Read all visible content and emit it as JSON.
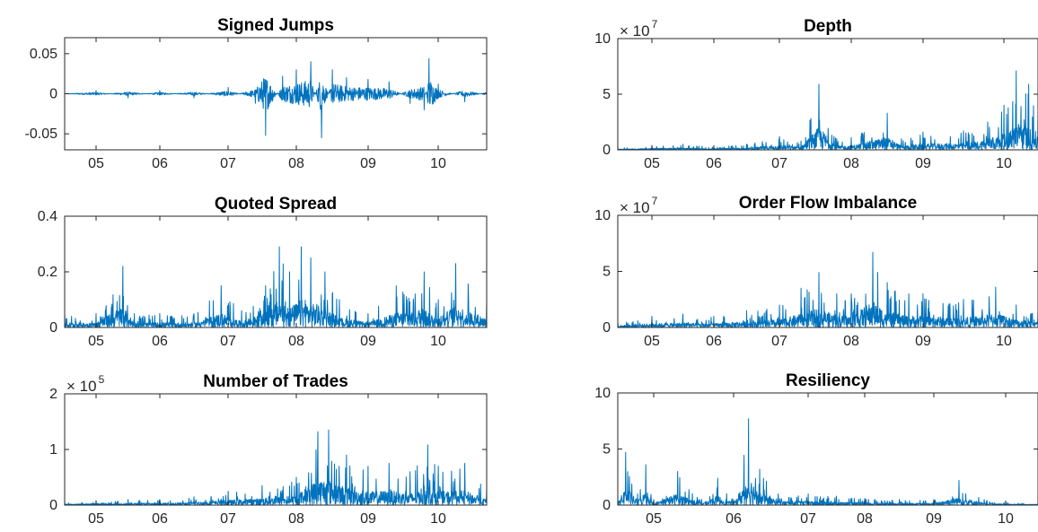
{
  "figure": {
    "series_color": "#0072BD",
    "axis_color": "#262626",
    "background": "#ffffff"
  },
  "chart_data": [
    {
      "type": "line",
      "title": "Signed Jumps",
      "x_tick_labels": [
        "05",
        "06",
        "07",
        "08",
        "09",
        "10"
      ],
      "x_range": [
        2004.55,
        2010.55
      ],
      "ylim": [
        -0.07,
        0.07
      ],
      "y_ticks": [
        -0.05,
        0,
        0.05
      ],
      "y_tick_labels": [
        "-0.05",
        "0",
        "0.05"
      ],
      "exponent_label": "",
      "grid": false,
      "series": [
        {
          "x": [
            2004.55,
            2005.0,
            2005.5,
            2006.0,
            2006.5,
            2007.0,
            2007.4,
            2007.55,
            2007.8,
            2008.0,
            2008.2,
            2008.35,
            2008.5,
            2008.7,
            2009.0,
            2009.3,
            2009.6,
            2009.8,
            2009.87,
            2010.0,
            2010.3,
            2010.55
          ],
          "y": [
            0.0,
            0.004,
            -0.005,
            0.004,
            -0.005,
            0.008,
            -0.012,
            -0.052,
            0.022,
            0.03,
            0.04,
            -0.055,
            0.03,
            0.02,
            0.018,
            0.015,
            -0.012,
            -0.02,
            0.044,
            0.012,
            -0.01,
            0.004
          ]
        }
      ]
    },
    {
      "type": "line",
      "title": "Depth",
      "x_tick_labels": [
        "05",
        "06",
        "07",
        "08",
        "09",
        "10"
      ],
      "x_range": [
        2004.55,
        2010.55
      ],
      "ylim": [
        0,
        10
      ],
      "y_ticks": [
        0,
        5,
        10
      ],
      "y_tick_labels": [
        "0",
        "5",
        "10"
      ],
      "exponent_label": "× 10",
      "exponent_power": "7",
      "grid": false,
      "series": [
        {
          "x": [
            2004.55,
            2005.0,
            2005.5,
            2006.0,
            2006.5,
            2007.0,
            2007.3,
            2007.55,
            2007.8,
            2008.0,
            2008.5,
            2008.7,
            2009.0,
            2009.5,
            2009.8,
            2010.0,
            2010.2,
            2010.4,
            2010.55
          ],
          "y": [
            0.2,
            0.4,
            0.5,
            0.3,
            0.5,
            1.2,
            0.8,
            5.9,
            1.0,
            1.1,
            3.3,
            1.0,
            1.6,
            1.7,
            2.5,
            4.0,
            7.1,
            5.9,
            3.0
          ]
        }
      ]
    },
    {
      "type": "line",
      "title": "Quoted Spread",
      "x_tick_labels": [
        "05",
        "06",
        "07",
        "08",
        "09",
        "10"
      ],
      "x_range": [
        2004.55,
        2010.55
      ],
      "ylim": [
        0,
        0.4
      ],
      "y_ticks": [
        0,
        0.2,
        0.4
      ],
      "y_tick_labels": [
        "0",
        "0.2",
        "0.4"
      ],
      "exponent_label": "",
      "grid": false,
      "series": [
        {
          "x": [
            2004.55,
            2005.0,
            2005.42,
            2005.6,
            2006.0,
            2006.5,
            2006.9,
            2007.2,
            2007.55,
            2007.75,
            2007.9,
            2008.07,
            2008.2,
            2008.4,
            2008.6,
            2009.0,
            2009.4,
            2009.8,
            2010.0,
            2010.2,
            2010.55
          ],
          "y": [
            0.05,
            0.05,
            0.22,
            0.05,
            0.05,
            0.05,
            0.15,
            0.06,
            0.15,
            0.29,
            0.2,
            0.29,
            0.25,
            0.2,
            0.1,
            0.05,
            0.15,
            0.2,
            0.1,
            0.23,
            0.1
          ]
        }
      ]
    },
    {
      "type": "line",
      "title": "Order Flow Imbalance",
      "x_tick_labels": [
        "05",
        "06",
        "07",
        "08",
        "09",
        "10"
      ],
      "x_range": [
        2004.55,
        2010.55
      ],
      "ylim": [
        0,
        10
      ],
      "y_ticks": [
        0,
        5,
        10
      ],
      "y_tick_labels": [
        "0",
        "5",
        "10"
      ],
      "exponent_label": "× 10",
      "exponent_power": "7",
      "grid": false,
      "series": [
        {
          "x": [
            2004.55,
            2005.0,
            2005.5,
            2006.0,
            2006.5,
            2007.0,
            2007.3,
            2007.55,
            2007.8,
            2008.0,
            2008.3,
            2008.5,
            2008.8,
            2009.0,
            2009.5,
            2009.9,
            2010.2,
            2010.55
          ],
          "y": [
            0.5,
            1.0,
            1.2,
            1.0,
            1.5,
            2.0,
            3.5,
            4.9,
            3.0,
            3.0,
            6.7,
            4.0,
            3.0,
            3.0,
            2.5,
            3.6,
            2.0,
            1.5
          ]
        }
      ]
    },
    {
      "type": "line",
      "title": "Number of Trades",
      "x_tick_labels": [
        "05",
        "06",
        "07",
        "08",
        "09",
        "10"
      ],
      "x_range": [
        2004.55,
        2010.55
      ],
      "ylim": [
        0,
        2
      ],
      "y_ticks": [
        0,
        1,
        2
      ],
      "y_tick_labels": [
        "0",
        "1",
        "2"
      ],
      "exponent_label": "× 10",
      "exponent_power": "5",
      "grid": false,
      "series": [
        {
          "x": [
            2004.55,
            2005.0,
            2005.5,
            2006.0,
            2006.5,
            2007.0,
            2007.5,
            2008.0,
            2008.3,
            2008.45,
            2008.7,
            2009.0,
            2009.3,
            2009.6,
            2009.85,
            2010.0,
            2010.3,
            2010.55
          ],
          "y": [
            0.05,
            0.08,
            0.1,
            0.1,
            0.15,
            0.25,
            0.35,
            0.5,
            1.32,
            1.35,
            0.9,
            0.7,
            0.75,
            0.6,
            1.08,
            0.7,
            0.75,
            0.3
          ]
        }
      ]
    },
    {
      "type": "line",
      "title": "Resiliency",
      "x_tick_labels": [
        "05",
        "06",
        "07",
        "08",
        "09",
        "10"
      ],
      "x_range": [
        2004.55,
        2010.55
      ],
      "ylim": [
        0,
        10
      ],
      "y_ticks": [
        0,
        5,
        10
      ],
      "y_tick_labels": [
        "0",
        "5",
        "10"
      ],
      "exponent_label": "",
      "grid": false,
      "series": [
        {
          "x": [
            2004.55,
            2004.65,
            2004.8,
            2004.9,
            2005.0,
            2005.3,
            2005.6,
            2005.8,
            2006.0,
            2006.2,
            2006.35,
            2006.6,
            2007.0,
            2007.5,
            2008.0,
            2008.5,
            2009.0,
            2009.35,
            2009.7,
            2010.0,
            2010.55
          ],
          "y": [
            0.5,
            4.7,
            1.0,
            3.6,
            0.5,
            3.0,
            0.5,
            2.4,
            0.5,
            7.7,
            3.2,
            1.0,
            1.0,
            0.8,
            0.6,
            0.5,
            0.5,
            2.2,
            0.5,
            0.3,
            0.2
          ]
        }
      ]
    }
  ]
}
